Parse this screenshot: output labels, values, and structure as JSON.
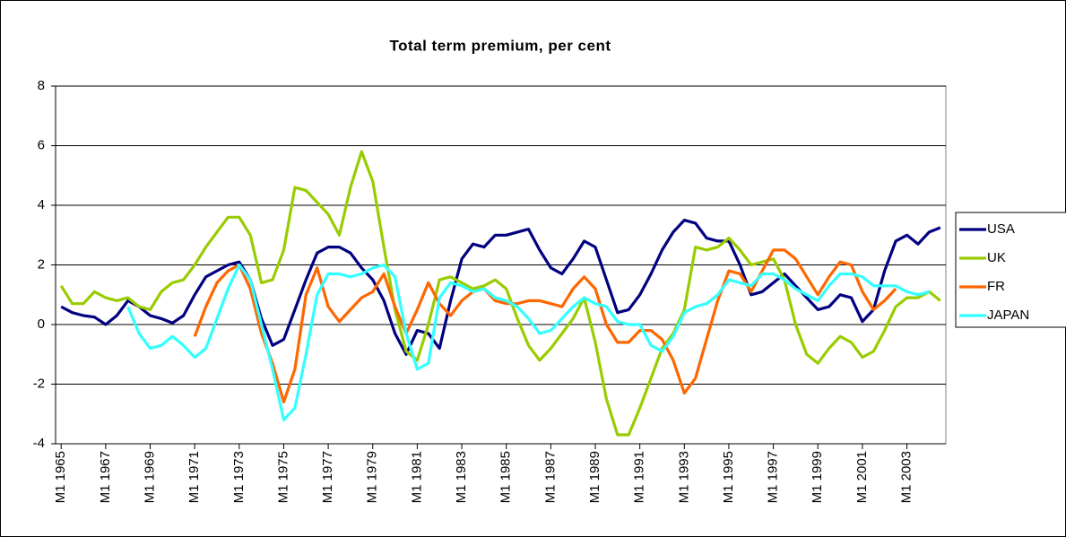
{
  "chart_data": {
    "type": "line",
    "title": "Total term premium, per cent",
    "x": [
      1965,
      1965.5,
      1966,
      1966.5,
      1967,
      1967.5,
      1968,
      1968.5,
      1969,
      1969.5,
      1970,
      1970.5,
      1971,
      1971.5,
      1972,
      1972.5,
      1973,
      1973.5,
      1974,
      1974.5,
      1975,
      1975.5,
      1976,
      1976.5,
      1977,
      1977.5,
      1978,
      1978.5,
      1979,
      1979.5,
      1980,
      1980.5,
      1981,
      1981.5,
      1982,
      1982.5,
      1983,
      1983.5,
      1984,
      1984.5,
      1985,
      1985.5,
      1986,
      1986.5,
      1987,
      1987.5,
      1988,
      1988.5,
      1989,
      1989.5,
      1990,
      1990.5,
      1991,
      1991.5,
      1992,
      1992.5,
      1993,
      1993.5,
      1994,
      1994.5,
      1995,
      1995.5,
      1996,
      1996.5,
      1997,
      1997.5,
      1998,
      1998.5,
      1999,
      1999.5,
      2000,
      2000.5,
      2001,
      2001.5,
      2002,
      2002.5,
      2003,
      2003.5,
      2004,
      2004.5
    ],
    "series": [
      {
        "name": "USA",
        "color": "#000080",
        "values": [
          0.6,
          0.4,
          0.3,
          0.25,
          0.0,
          0.3,
          0.8,
          0.6,
          0.3,
          0.2,
          0.05,
          0.3,
          1.0,
          1.6,
          1.8,
          2.0,
          2.1,
          1.5,
          0.2,
          -0.7,
          -0.5,
          0.5,
          1.5,
          2.4,
          2.6,
          2.6,
          2.4,
          1.9,
          1.5,
          0.8,
          -0.3,
          -1.0,
          -0.2,
          -0.3,
          -0.8,
          0.8,
          2.2,
          2.7,
          2.6,
          3.0,
          3.0,
          3.1,
          3.2,
          2.5,
          1.9,
          1.7,
          2.2,
          2.8,
          2.6,
          1.5,
          0.4,
          0.5,
          1.0,
          1.7,
          2.5,
          3.1,
          3.5,
          3.4,
          2.9,
          2.8,
          2.8,
          2.0,
          1.0,
          1.1,
          1.4,
          1.7,
          1.3,
          0.9,
          0.5,
          0.6,
          1.0,
          0.9,
          0.1,
          0.5,
          1.8,
          2.8,
          3.0,
          2.7,
          3.1,
          3.25
        ]
      },
      {
        "name": "UK",
        "color": "#99cc00",
        "values": [
          1.3,
          0.7,
          0.7,
          1.1,
          0.9,
          0.8,
          0.9,
          0.6,
          0.5,
          1.1,
          1.4,
          1.5,
          2.0,
          2.6,
          3.1,
          3.6,
          3.6,
          3.0,
          1.4,
          1.5,
          2.5,
          4.6,
          4.5,
          4.1,
          3.7,
          3.0,
          4.6,
          5.8,
          4.8,
          2.6,
          0.5,
          -0.9,
          -1.2,
          0.0,
          1.5,
          1.6,
          1.4,
          1.2,
          1.3,
          1.5,
          1.2,
          0.2,
          -0.7,
          -1.2,
          -0.8,
          -0.3,
          0.2,
          0.9,
          -0.6,
          -2.5,
          -3.7,
          -3.7,
          -2.8,
          -1.8,
          -0.8,
          -0.3,
          0.5,
          2.6,
          2.5,
          2.6,
          2.9,
          2.5,
          2.0,
          2.1,
          2.2,
          1.5,
          0.0,
          -1.0,
          -1.3,
          -0.8,
          -0.4,
          -0.6,
          -1.1,
          -0.9,
          -0.2,
          0.6,
          0.9,
          0.9,
          1.1,
          0.8
        ]
      },
      {
        "name": "FR",
        "color": "#ff6600",
        "values": [
          null,
          null,
          null,
          null,
          null,
          null,
          null,
          null,
          null,
          null,
          null,
          null,
          -0.4,
          0.6,
          1.4,
          1.8,
          2.0,
          1.2,
          -0.3,
          -1.3,
          -2.6,
          -1.5,
          1.0,
          1.9,
          0.6,
          0.1,
          0.5,
          0.9,
          1.1,
          1.7,
          0.6,
          -0.3,
          0.5,
          1.4,
          0.7,
          0.3,
          0.8,
          1.1,
          1.2,
          0.8,
          0.7,
          0.7,
          0.8,
          0.8,
          0.7,
          0.6,
          1.2,
          1.6,
          1.2,
          0.0,
          -0.6,
          -0.6,
          -0.2,
          -0.2,
          -0.5,
          -1.2,
          -2.3,
          -1.8,
          -0.5,
          0.8,
          1.8,
          1.7,
          1.1,
          1.8,
          2.5,
          2.5,
          2.2,
          1.6,
          1.0,
          1.6,
          2.1,
          2.0,
          1.1,
          0.5,
          0.8,
          1.2,
          null,
          null,
          null,
          null
        ]
      },
      {
        "name": "JAPAN",
        "color": "#33ffff",
        "values": [
          null,
          null,
          null,
          null,
          null,
          null,
          0.6,
          -0.3,
          -0.8,
          -0.7,
          -0.4,
          -0.7,
          -1.1,
          -0.8,
          0.2,
          1.2,
          2.0,
          1.5,
          0.0,
          -1.5,
          -3.2,
          -2.8,
          -1.0,
          1.0,
          1.7,
          1.7,
          1.6,
          1.7,
          1.9,
          2.0,
          1.6,
          -0.3,
          -1.5,
          -1.3,
          0.9,
          1.4,
          1.3,
          1.1,
          1.2,
          0.9,
          0.8,
          0.6,
          0.2,
          -0.3,
          -0.2,
          0.2,
          0.6,
          0.9,
          0.7,
          0.6,
          0.1,
          0.0,
          0.0,
          -0.7,
          -0.9,
          -0.4,
          0.4,
          0.6,
          0.7,
          1.0,
          1.5,
          1.4,
          1.3,
          1.7,
          1.7,
          1.5,
          1.2,
          1.0,
          0.8,
          1.3,
          1.7,
          1.7,
          1.6,
          1.3,
          1.3,
          1.3,
          1.1,
          1.0,
          1.1,
          null
        ]
      }
    ],
    "xlim": [
      1964.75,
      2004.75
    ],
    "xticks": [
      {
        "value": 1965,
        "label": "M1 1965"
      },
      {
        "value": 1967,
        "label": "M1 1967"
      },
      {
        "value": 1969,
        "label": "M1 1969"
      },
      {
        "value": 1971,
        "label": "M1 1971"
      },
      {
        "value": 1973,
        "label": "M1 1973"
      },
      {
        "value": 1975,
        "label": "M1 1975"
      },
      {
        "value": 1977,
        "label": "M1 1977"
      },
      {
        "value": 1979,
        "label": "M1 1979"
      },
      {
        "value": 1981,
        "label": "M1 1981"
      },
      {
        "value": 1983,
        "label": "M1 1983"
      },
      {
        "value": 1985,
        "label": "M1 1985"
      },
      {
        "value": 1987,
        "label": "M1 1987"
      },
      {
        "value": 1989,
        "label": "M1 1989"
      },
      {
        "value": 1991,
        "label": "M1 1991"
      },
      {
        "value": 1993,
        "label": "M1 1993"
      },
      {
        "value": 1995,
        "label": "M1 1995"
      },
      {
        "value": 1997,
        "label": "M1 1997"
      },
      {
        "value": 1999,
        "label": "M1 1999"
      },
      {
        "value": 2001,
        "label": "M1 2001"
      },
      {
        "value": 2003,
        "label": "M1 2003"
      }
    ],
    "ylim": [
      -4,
      8
    ],
    "yticks": [
      -4,
      -2,
      0,
      2,
      4,
      6,
      8
    ],
    "grid": true,
    "legend": "right"
  }
}
